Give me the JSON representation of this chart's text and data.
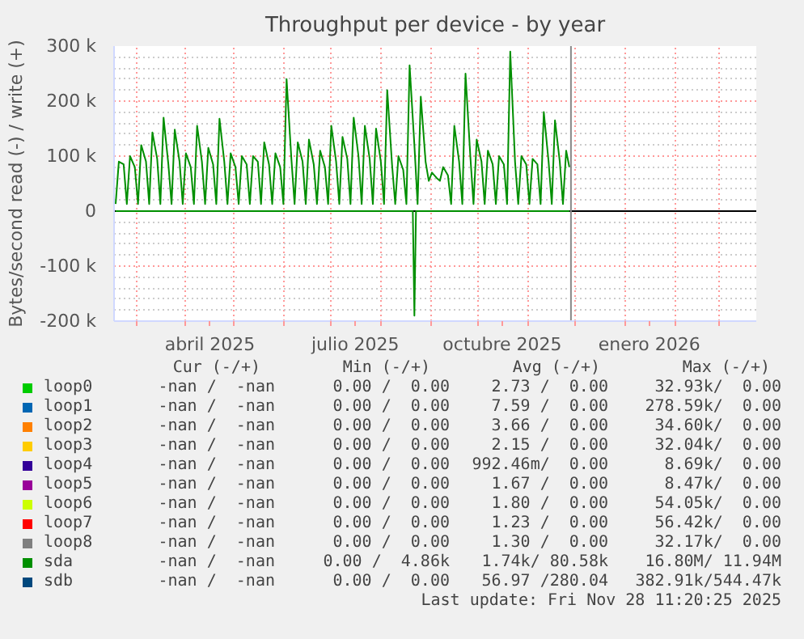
{
  "chart_data": {
    "type": "line",
    "title": "Throughput per device - by year",
    "ylabel": "Bytes/second read (-) / write (+)",
    "xlim": [
      "2025-02-15",
      "2026-03-24"
    ],
    "xticks": [
      {
        "value": "2025-03-01",
        "label": null
      },
      {
        "value": "2025-04-01",
        "label": null
      },
      {
        "value": "2025-04-16",
        "label": "abril 2025"
      },
      {
        "value": "2025-05-01",
        "label": null
      },
      {
        "value": "2025-06-01",
        "label": null
      },
      {
        "value": "2025-07-01",
        "label": null
      },
      {
        "value": "2025-07-16",
        "label": "julio 2025"
      },
      {
        "value": "2025-08-01",
        "label": null
      },
      {
        "value": "2025-09-01",
        "label": null
      },
      {
        "value": "2025-10-01",
        "label": null
      },
      {
        "value": "2025-10-16",
        "label": "octubre 2025"
      },
      {
        "value": "2025-11-01",
        "label": null
      },
      {
        "value": "2025-12-01",
        "label": null
      },
      {
        "value": "2026-01-01",
        "label": null
      },
      {
        "value": "2026-01-16",
        "label": "enero 2026"
      },
      {
        "value": "2026-02-01",
        "label": null
      },
      {
        "value": "2026-03-01",
        "label": null
      }
    ],
    "ylim": [
      -200000,
      300000
    ],
    "yticks": [
      {
        "value": -200000,
        "label": "-200 k"
      },
      {
        "value": -100000,
        "label": "-100 k"
      },
      0,
      {
        "value": 100000,
        "label": "100 k"
      },
      {
        "value": 200000,
        "label": "200 k"
      },
      {
        "value": 300000,
        "label": "300 k"
      }
    ],
    "grid": true,
    "ref_lines": [
      {
        "axis": "y",
        "value": 0,
        "label": null,
        "color": "#000000"
      },
      {
        "axis": "x",
        "value": "2025-11-28",
        "label": null,
        "color": "#888888"
      }
    ],
    "series": [
      {
        "name": "loop0",
        "color": "#00cc00"
      },
      {
        "name": "loop1",
        "color": "#0066b3"
      },
      {
        "name": "loop2",
        "color": "#ff8000"
      },
      {
        "name": "loop3",
        "color": "#ffcc00"
      },
      {
        "name": "loop4",
        "color": "#330099"
      },
      {
        "name": "loop5",
        "color": "#990099"
      },
      {
        "name": "loop6",
        "color": "#ccff00"
      },
      {
        "name": "loop7",
        "color": "#ff0000"
      },
      {
        "name": "loop8",
        "color": "#808080"
      },
      {
        "name": "sda",
        "color": "#008f00",
        "x": [
          "2025-02-16",
          "2025-02-18",
          "2025-02-21",
          "2025-02-23",
          "2025-02-25",
          "2025-02-28",
          "2025-03-02",
          "2025-03-04",
          "2025-03-07",
          "2025-03-09",
          "2025-03-11",
          "2025-03-14",
          "2025-03-16",
          "2025-03-18",
          "2025-03-21",
          "2025-03-23",
          "2025-03-25",
          "2025-03-28",
          "2025-03-30",
          "2025-04-01",
          "2025-04-04",
          "2025-04-06",
          "2025-04-08",
          "2025-04-11",
          "2025-04-13",
          "2025-04-15",
          "2025-04-18",
          "2025-04-20",
          "2025-04-22",
          "2025-04-25",
          "2025-04-27",
          "2025-04-29",
          "2025-05-02",
          "2025-05-04",
          "2025-05-06",
          "2025-05-09",
          "2025-05-11",
          "2025-05-13",
          "2025-05-16",
          "2025-05-18",
          "2025-05-20",
          "2025-05-23",
          "2025-05-25",
          "2025-05-27",
          "2025-05-30",
          "2025-06-01",
          "2025-06-03",
          "2025-06-06",
          "2025-06-08",
          "2025-06-10",
          "2025-06-13",
          "2025-06-15",
          "2025-06-17",
          "2025-06-20",
          "2025-06-22",
          "2025-06-24",
          "2025-06-27",
          "2025-06-29",
          "2025-07-01",
          "2025-07-04",
          "2025-07-06",
          "2025-07-08",
          "2025-07-11",
          "2025-07-13",
          "2025-07-15",
          "2025-07-18",
          "2025-07-20",
          "2025-07-22",
          "2025-07-25",
          "2025-07-27",
          "2025-07-29",
          "2025-08-01",
          "2025-08-03",
          "2025-08-05",
          "2025-08-08",
          "2025-08-10",
          "2025-08-12",
          "2025-08-15",
          "2025-08-17",
          "2025-08-19",
          "2025-08-22",
          "2025-08-24",
          "2025-08-26",
          "2025-08-29",
          "2025-08-31",
          "2025-09-02",
          "2025-09-05",
          "2025-09-07",
          "2025-09-09",
          "2025-09-12",
          "2025-09-14",
          "2025-09-16",
          "2025-09-19",
          "2025-09-21",
          "2025-09-23",
          "2025-09-26",
          "2025-09-28",
          "2025-09-30",
          "2025-10-03",
          "2025-10-05",
          "2025-10-07",
          "2025-10-10",
          "2025-10-12",
          "2025-10-14",
          "2025-10-17",
          "2025-10-19",
          "2025-10-21",
          "2025-10-24",
          "2025-10-26",
          "2025-10-28",
          "2025-10-31",
          "2025-11-02",
          "2025-11-04",
          "2025-11-07",
          "2025-11-09",
          "2025-11-11",
          "2025-11-14",
          "2025-11-16",
          "2025-11-18",
          "2025-11-21",
          "2025-11-23",
          "2025-11-25",
          "2025-11-27"
        ],
        "values": [
          13000,
          90000,
          85000,
          13000,
          100000,
          80000,
          13000,
          120000,
          90000,
          13000,
          143000,
          95000,
          13000,
          170000,
          85000,
          13000,
          148000,
          90000,
          13000,
          105000,
          80000,
          13000,
          155000,
          90000,
          13000,
          115000,
          85000,
          13000,
          168000,
          90000,
          13000,
          105000,
          80000,
          13000,
          100000,
          85000,
          13000,
          100000,
          90000,
          13000,
          125000,
          85000,
          13000,
          105000,
          80000,
          13000,
          240000,
          95000,
          13000,
          125000,
          90000,
          13000,
          130000,
          85000,
          13000,
          110000,
          80000,
          13000,
          155000,
          90000,
          13000,
          135000,
          95000,
          13000,
          170000,
          100000,
          13000,
          155000,
          95000,
          13000,
          150000,
          90000,
          13000,
          220000,
          85000,
          13000,
          100000,
          75000,
          13000,
          265000,
          120000,
          13000,
          208000,
          90000,
          55000,
          70000,
          60000,
          55000,
          80000,
          65000,
          13000,
          155000,
          90000,
          13000,
          250000,
          100000,
          13000,
          130000,
          90000,
          13000,
          110000,
          85000,
          13000,
          100000,
          85000,
          13000,
          290000,
          90000,
          13000,
          100000,
          85000,
          13000,
          95000,
          85000,
          13000,
          180000,
          90000,
          13000,
          165000,
          90000,
          13000,
          110000,
          80000
        ]
      },
      {
        "color": "#008f00",
        "x": [
          "2025-02-16",
          "2025-08-21",
          "2025-08-22",
          "2025-08-23",
          "2025-11-27"
        ],
        "values": [
          0,
          0,
          -190000,
          0,
          0
        ]
      },
      {
        "name": "sdb",
        "color": "#00487d"
      }
    ],
    "annotations": [
      "Cur (-/+)",
      "Min (-/+)",
      "Avg (-/+)",
      "Max (-/+)",
      "-nan /  -nan",
      "0.00 /  0.00",
      "2.73 /  0.00",
      "32.93k/  0.00",
      "-nan /  -nan",
      "0.00 /  0.00",
      "7.59 /  0.00",
      "278.59k/  0.00",
      "-nan /  -nan",
      "0.00 /  0.00",
      "3.66 /  0.00",
      "34.60k/  0.00",
      "-nan /  -nan",
      "0.00 /  0.00",
      "2.15 /  0.00",
      "32.04k/  0.00",
      "-nan /  -nan",
      "0.00 /  0.00",
      "992.46m/  0.00",
      "8.69k/  0.00",
      "-nan /  -nan",
      "0.00 /  0.00",
      "1.67 /  0.00",
      "8.47k/  0.00",
      "-nan /  -nan",
      "0.00 /  0.00",
      "1.80 /  0.00",
      "54.05k/  0.00",
      "-nan /  -nan",
      "0.00 /  0.00",
      "1.23 /  0.00",
      "56.42k/  0.00",
      "-nan /  -nan",
      "0.00 /  0.00",
      "1.30 /  0.00",
      "32.17k/  0.00",
      "-nan /  -nan",
      "0.00 /  4.86k",
      "1.74k/ 80.58k",
      "16.80M/ 11.94M",
      "-nan /  -nan",
      "0.00 /  0.00",
      "56.97 /280.04",
      "382.91k/544.47k",
      "Last update: Fri Nov 28 11:20:25 2025"
    ]
  }
}
